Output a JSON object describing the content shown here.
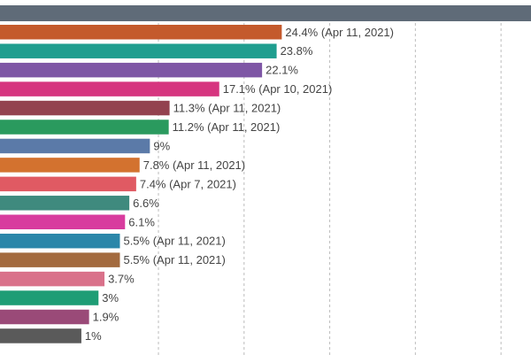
{
  "chart_data": {
    "type": "bar",
    "orientation": "horizontal",
    "grid": true,
    "gridlines_x": [
      10,
      20,
      30,
      40,
      50
    ],
    "xlim": [
      -8.5,
      53.5
    ],
    "bars": [
      {
        "value": 24.4,
        "label": "24.4% (Apr 11, 2021)",
        "color": "#c45a2c"
      },
      {
        "value": 23.8,
        "label": "23.8%",
        "color": "#1f9e8f"
      },
      {
        "value": 22.1,
        "label": "22.1%",
        "color": "#7e56a5"
      },
      {
        "value": 17.1,
        "label": "17.1% (Apr 10, 2021)",
        "color": "#d6357f"
      },
      {
        "value": 11.3,
        "label": "11.3% (Apr 11, 2021)",
        "color": "#93424f"
      },
      {
        "value": 11.2,
        "label": "11.2% (Apr 11, 2021)",
        "color": "#2a9a5e"
      },
      {
        "value": 9,
        "label": "9%",
        "color": "#5b7aa8"
      },
      {
        "value": 7.8,
        "label": "7.8% (Apr 11, 2021)",
        "color": "#d3722f"
      },
      {
        "value": 7.4,
        "label": "7.4% (Apr 7, 2021)",
        "color": "#e05a63"
      },
      {
        "value": 6.6,
        "label": "6.6%",
        "color": "#3f8a7e"
      },
      {
        "value": 6.1,
        "label": "6.1%",
        "color": "#d83c9e"
      },
      {
        "value": 5.5,
        "label": "5.5% (Apr 11, 2021)",
        "color": "#2b86a9"
      },
      {
        "value": 5.5,
        "label": "5.5% (Apr 11, 2021)",
        "color": "#a36a3e"
      },
      {
        "value": 3.7,
        "label": "3.7%",
        "color": "#d9718a"
      },
      {
        "value": 3,
        "label": "3%",
        "color": "#1e9d75"
      },
      {
        "value": 1.9,
        "label": "1.9%",
        "color": "#9a4a78"
      },
      {
        "value": 1,
        "label": "1%",
        "color": "#5a5a5a"
      }
    ],
    "header_bar_color": "#5f6b78"
  }
}
